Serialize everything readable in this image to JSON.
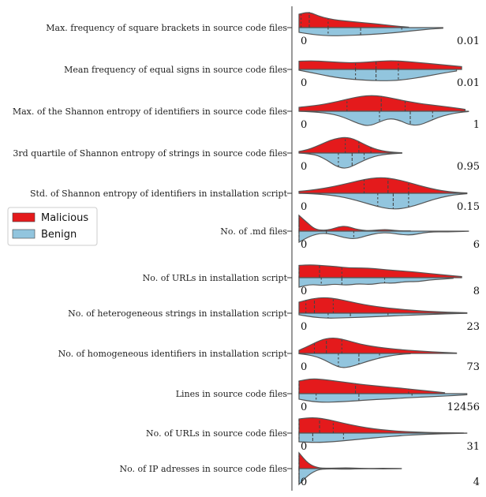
{
  "chart_data": {
    "type": "violin",
    "orientation": "horizontal",
    "split": true,
    "legend": {
      "placement": "left",
      "entries": [
        {
          "name": "Malicious",
          "color": "#e41a1c"
        },
        {
          "name": "Benign",
          "color": "#92c5de"
        }
      ]
    },
    "features": [
      {
        "label": "Max. frequency of square brackets in source code files",
        "min_label": "0",
        "max_label": "0.01",
        "malicious": {
          "density": [
            0.85,
            1.0,
            0.72,
            0.56,
            0.46,
            0.4,
            0.34,
            0.28,
            0.22,
            0.15,
            0.08,
            0.03
          ],
          "extent": 0.64,
          "quartiles": [
            0.012,
            0.06,
            0.17
          ]
        },
        "benign": {
          "density": [
            0.3,
            0.42,
            0.5,
            0.52,
            0.5,
            0.47,
            0.43,
            0.38,
            0.32,
            0.24,
            0.16,
            0.09,
            0.04
          ],
          "extent": 0.84,
          "quartiles": [
            0.17,
            0.36,
            0.6
          ]
        }
      },
      {
        "label": "Mean frequency of equal signs in source code files",
        "min_label": "0",
        "max_label": "0.01",
        "malicious": {
          "density": [
            0.52,
            0.55,
            0.5,
            0.45,
            0.42,
            0.46,
            0.53,
            0.55,
            0.5,
            0.42,
            0.34,
            0.26,
            0.18
          ],
          "extent": 0.95,
          "quartiles": [
            0.33,
            0.45,
            0.58
          ]
        },
        "benign": {
          "density": [
            0.05,
            0.2,
            0.36,
            0.5,
            0.6,
            0.66,
            0.7,
            0.72,
            0.7,
            0.62,
            0.5,
            0.36,
            0.22,
            0.1
          ],
          "extent": 0.92,
          "quartiles": [
            0.33,
            0.45,
            0.58
          ]
        }
      },
      {
        "label": "Max. of the Shannon entropy of identifiers in source code files",
        "min_label": "0",
        "max_label": "1",
        "malicious": {
          "density": [
            0.25,
            0.32,
            0.4,
            0.52,
            0.66,
            0.82,
            0.95,
            1.0,
            0.95,
            0.82,
            0.68,
            0.56,
            0.46,
            0.38,
            0.3,
            0.22,
            0.12
          ],
          "extent": 0.97,
          "quartiles": [
            0.28,
            0.48,
            0.62
          ]
        },
        "benign": {
          "density": [
            0.0,
            0.03,
            0.07,
            0.14,
            0.28,
            0.52,
            0.8,
            0.95,
            0.7,
            0.45,
            0.55,
            0.85,
            0.9,
            0.65,
            0.38,
            0.2,
            0.08,
            0.02
          ],
          "extent": 0.99,
          "quartiles": [
            0.47,
            0.65,
            0.78
          ]
        }
      },
      {
        "label": "3rd quartile of Shannon entropy of strings in source code files",
        "min_label": "0",
        "max_label": "0.95",
        "malicious": {
          "density": [
            0.1,
            0.2,
            0.38,
            0.6,
            0.82,
            0.95,
            1.0,
            0.88,
            0.62,
            0.38,
            0.2,
            0.1,
            0.05,
            0.02
          ],
          "extent": 0.6,
          "quartiles": [
            0.27,
            0.35,
            0.42
          ]
        },
        "benign": {
          "density": [
            0.0,
            0.04,
            0.15,
            0.45,
            0.85,
            1.0,
            0.75,
            0.45,
            0.22,
            0.1,
            0.04,
            0.01
          ],
          "extent": 0.6,
          "quartiles": [
            0.23,
            0.31,
            0.38
          ]
        }
      },
      {
        "label": "Std. of Shannon entropy of identifiers in installation script",
        "min_label": "0",
        "max_label": "0.15",
        "malicious": {
          "density": [
            0.12,
            0.2,
            0.3,
            0.45,
            0.62,
            0.8,
            0.95,
            1.0,
            0.9,
            0.72,
            0.5,
            0.3,
            0.15,
            0.06,
            0.02
          ],
          "extent": 0.98,
          "quartiles": [
            0.38,
            0.52,
            0.64
          ]
        },
        "benign": {
          "density": [
            0.0,
            0.03,
            0.08,
            0.18,
            0.35,
            0.58,
            0.82,
            1.0,
            0.98,
            0.78,
            0.5,
            0.26,
            0.1,
            0.03
          ],
          "extent": 0.98,
          "quartiles": [
            0.46,
            0.55,
            0.64
          ]
        }
      },
      {
        "label": "No. of .md files",
        "min_label": "0",
        "max_label": "6",
        "malicious": {
          "density": [
            1.0,
            0.55,
            0.12,
            0.05,
            0.1,
            0.28,
            0.32,
            0.15,
            0.05,
            0.03,
            0.08,
            0.1,
            0.05,
            0.02,
            0.02
          ],
          "extent": 0.65,
          "quartiles": [
            0.0,
            0.0,
            0.16
          ]
        },
        "benign": {
          "density": [
            0.7,
            0.3,
            0.12,
            0.2,
            0.42,
            0.5,
            0.28,
            0.12,
            0.1,
            0.22,
            0.25,
            0.1,
            0.04,
            0.05,
            0.03,
            0.01
          ],
          "extent": 0.99,
          "quartiles": [
            0.0,
            0.16,
            0.32
          ]
        }
      },
      {
        "label": "No. of URLs in installation script",
        "min_label": "0",
        "max_label": "8",
        "malicious": {
          "density": [
            0.78,
            0.82,
            0.76,
            0.7,
            0.62,
            0.62,
            0.58,
            0.5,
            0.44,
            0.38,
            0.3,
            0.22,
            0.14,
            0.07
          ],
          "extent": 0.95,
          "quartiles": [
            0.0,
            0.12,
            0.25
          ]
        },
        "benign": {
          "density": [
            0.6,
            0.42,
            0.5,
            0.4,
            0.48,
            0.38,
            0.44,
            0.32,
            0.36,
            0.24,
            0.26,
            0.14,
            0.1,
            0.04
          ],
          "extent": 0.9,
          "quartiles": [
            0.13,
            0.25,
            0.5
          ]
        }
      },
      {
        "label": "No. of heterogeneous strings in installation script",
        "min_label": "0",
        "max_label": "23",
        "malicious": {
          "density": [
            0.7,
            0.92,
            1.0,
            0.9,
            0.72,
            0.55,
            0.42,
            0.32,
            0.24,
            0.17,
            0.12,
            0.08,
            0.05,
            0.03
          ],
          "extent": 0.98,
          "quartiles": [
            0.04,
            0.09,
            0.2
          ]
        },
        "benign": {
          "density": [
            0.1,
            0.25,
            0.32,
            0.3,
            0.27,
            0.24,
            0.2,
            0.16,
            0.12,
            0.09,
            0.06,
            0.03,
            0.01
          ],
          "extent": 0.98,
          "quartiles": [
            0.17,
            0.3,
            0.52
          ]
        }
      },
      {
        "label": "No. of homogeneous identifiers in installation script",
        "min_label": "0",
        "max_label": "73",
        "malicious": {
          "density": [
            0.2,
            0.55,
            0.92,
            1.0,
            0.82,
            0.6,
            0.45,
            0.35,
            0.27,
            0.2,
            0.15,
            0.1,
            0.06,
            0.03
          ],
          "extent": 0.92,
          "quartiles": [
            0.09,
            0.16,
            0.25
          ]
        },
        "benign": {
          "density": [
            0.02,
            0.08,
            0.2,
            0.42,
            0.72,
            0.92,
            0.85,
            0.68,
            0.5,
            0.35,
            0.22,
            0.12,
            0.05,
            0.02
          ],
          "extent": 0.65,
          "quartiles": [
            0.23,
            0.35,
            0.47
          ]
        }
      },
      {
        "label": "Lines in source code files",
        "min_label": "0",
        "max_label": "12456",
        "malicious": {
          "density": [
            0.8,
            0.95,
            0.9,
            0.8,
            0.7,
            0.6,
            0.52,
            0.44,
            0.38,
            0.3,
            0.22,
            0.14,
            0.06
          ],
          "extent": 0.85,
          "quartiles": [
            0.0,
            0.33,
            0.64
          ]
        },
        "benign": {
          "density": [
            0.35,
            0.5,
            0.55,
            0.52,
            0.48,
            0.42,
            0.37,
            0.33,
            0.28,
            0.24,
            0.2,
            0.16,
            0.12,
            0.07
          ],
          "extent": 0.98,
          "quartiles": [
            0.1,
            0.35,
            0.66
          ]
        }
      },
      {
        "label": "No. of URLs in source code files",
        "min_label": "0",
        "max_label": "31",
        "malicious": {
          "density": [
            0.9,
            1.0,
            0.85,
            0.62,
            0.42,
            0.27,
            0.17,
            0.1,
            0.06,
            0.03,
            0.02,
            0.01
          ],
          "extent": 0.96,
          "quartiles": [
            0.0,
            0.12,
            0.2
          ]
        },
        "benign": {
          "density": [
            0.55,
            0.6,
            0.55,
            0.45,
            0.35,
            0.25,
            0.17,
            0.1,
            0.06,
            0.03,
            0.01
          ],
          "extent": 0.98,
          "quartiles": [
            0.0,
            0.08,
            0.26
          ]
        }
      },
      {
        "label": "No. of IP adresses in source code files",
        "min_label": "0",
        "max_label": "4",
        "malicious": {
          "density": [
            1.0,
            0.3,
            0.05,
            0.02,
            0.03,
            0.05,
            0.03,
            0.01,
            0.01,
            0.02,
            0.01,
            0.0
          ],
          "extent": 0.6,
          "quartiles": [
            0.0,
            0.0,
            0.0
          ]
        },
        "benign": {
          "density": [
            1.0,
            0.4,
            0.06,
            0.02,
            0.02,
            0.04,
            0.02,
            0.01,
            0.01,
            0.02,
            0.01,
            0.0
          ],
          "extent": 0.6,
          "quartiles": [
            0.0,
            0.0,
            0.0
          ]
        }
      }
    ]
  }
}
